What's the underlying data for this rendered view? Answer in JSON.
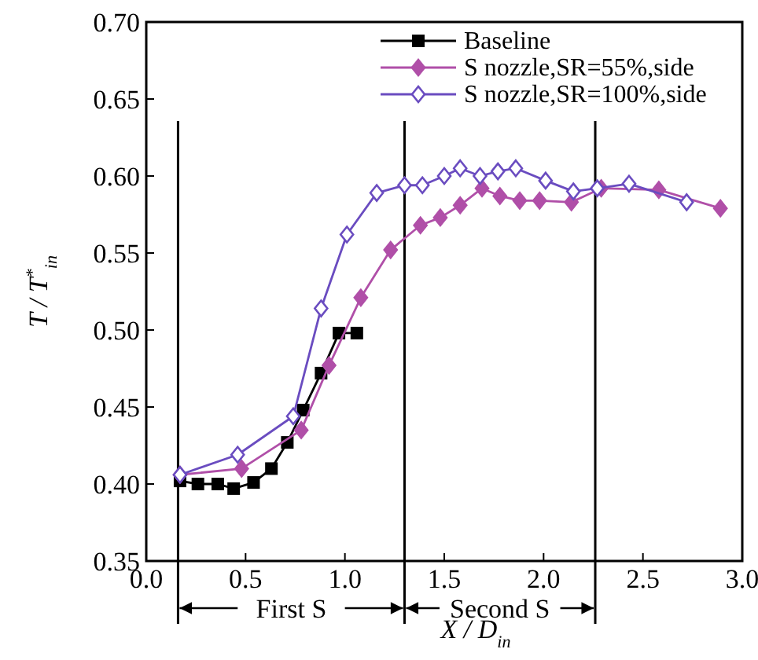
{
  "chart_data": {
    "type": "line",
    "xlabel": "X / D$_{in}$",
    "ylabel": "T / T$^{*}$$_{in}$",
    "xlim": [
      0,
      3
    ],
    "ylim": [
      0.35,
      0.7
    ],
    "xticks": [
      {
        "value": 0,
        "label": "0.0"
      },
      0.5,
      {
        "value": 1,
        "label": "1.0"
      },
      1.5,
      {
        "value": 2,
        "label": "2.0"
      },
      2.5,
      {
        "value": 3,
        "label": "3.0"
      }
    ],
    "yticks": [
      0.35,
      {
        "value": 0.4,
        "label": "0.40"
      },
      0.45,
      {
        "value": 0.5,
        "label": "0.50"
      },
      0.55,
      {
        "value": 0.6,
        "label": "0.60"
      },
      0.65,
      {
        "value": 0.7,
        "label": "0.70"
      }
    ],
    "grid": false,
    "legend": "top right",
    "line_style": "solid",
    "series": [
      {
        "name": "Baseline",
        "color": "#000000",
        "marker": "square",
        "x": [
          0.17,
          0.26,
          0.36,
          0.44,
          0.54,
          0.63,
          0.71,
          0.79,
          0.88,
          0.97,
          1.06
        ],
        "values": [
          0.402,
          0.4,
          0.4,
          0.397,
          0.401,
          0.41,
          0.427,
          0.448,
          0.472,
          0.498,
          0.498
        ]
      },
      {
        "name": "S nozzle,SR=55%,side",
        "color": "#b04fa8",
        "marker": "diamond",
        "x": [
          0.17,
          0.48,
          0.78,
          0.92,
          1.08,
          1.23,
          1.38,
          1.48,
          1.58,
          1.69,
          1.78,
          1.88,
          1.98,
          2.14,
          2.29,
          2.58,
          2.89
        ],
        "values": [
          0.406,
          0.41,
          0.435,
          0.477,
          0.521,
          0.552,
          0.568,
          0.573,
          0.581,
          0.592,
          0.587,
          0.584,
          0.584,
          0.583,
          0.592,
          0.591,
          0.579
        ]
      },
      {
        "name": "S nozzle,SR=100%,side",
        "color": "#6a4cc0",
        "marker": "diamond",
        "x": [
          0.17,
          0.46,
          0.74,
          0.88,
          1.01,
          1.16,
          1.3,
          1.39,
          1.5,
          1.58,
          1.68,
          1.77,
          1.86,
          2.01,
          2.15,
          2.27,
          2.43,
          2.72
        ],
        "values": [
          0.406,
          0.419,
          0.444,
          0.514,
          0.562,
          0.589,
          0.594,
          0.594,
          0.6,
          0.605,
          0.6,
          0.603,
          0.605,
          0.597,
          0.59,
          0.592,
          0.595,
          0.583
        ]
      }
    ],
    "ref_lines": [
      {
        "axis": "x",
        "value": 0.16,
        "color": "#000000"
      },
      {
        "axis": "x",
        "value": 1.3,
        "color": "#000000"
      },
      {
        "axis": "x",
        "value": 2.26,
        "color": "#000000"
      }
    ],
    "annotations": [
      "First S",
      "Second S"
    ]
  }
}
